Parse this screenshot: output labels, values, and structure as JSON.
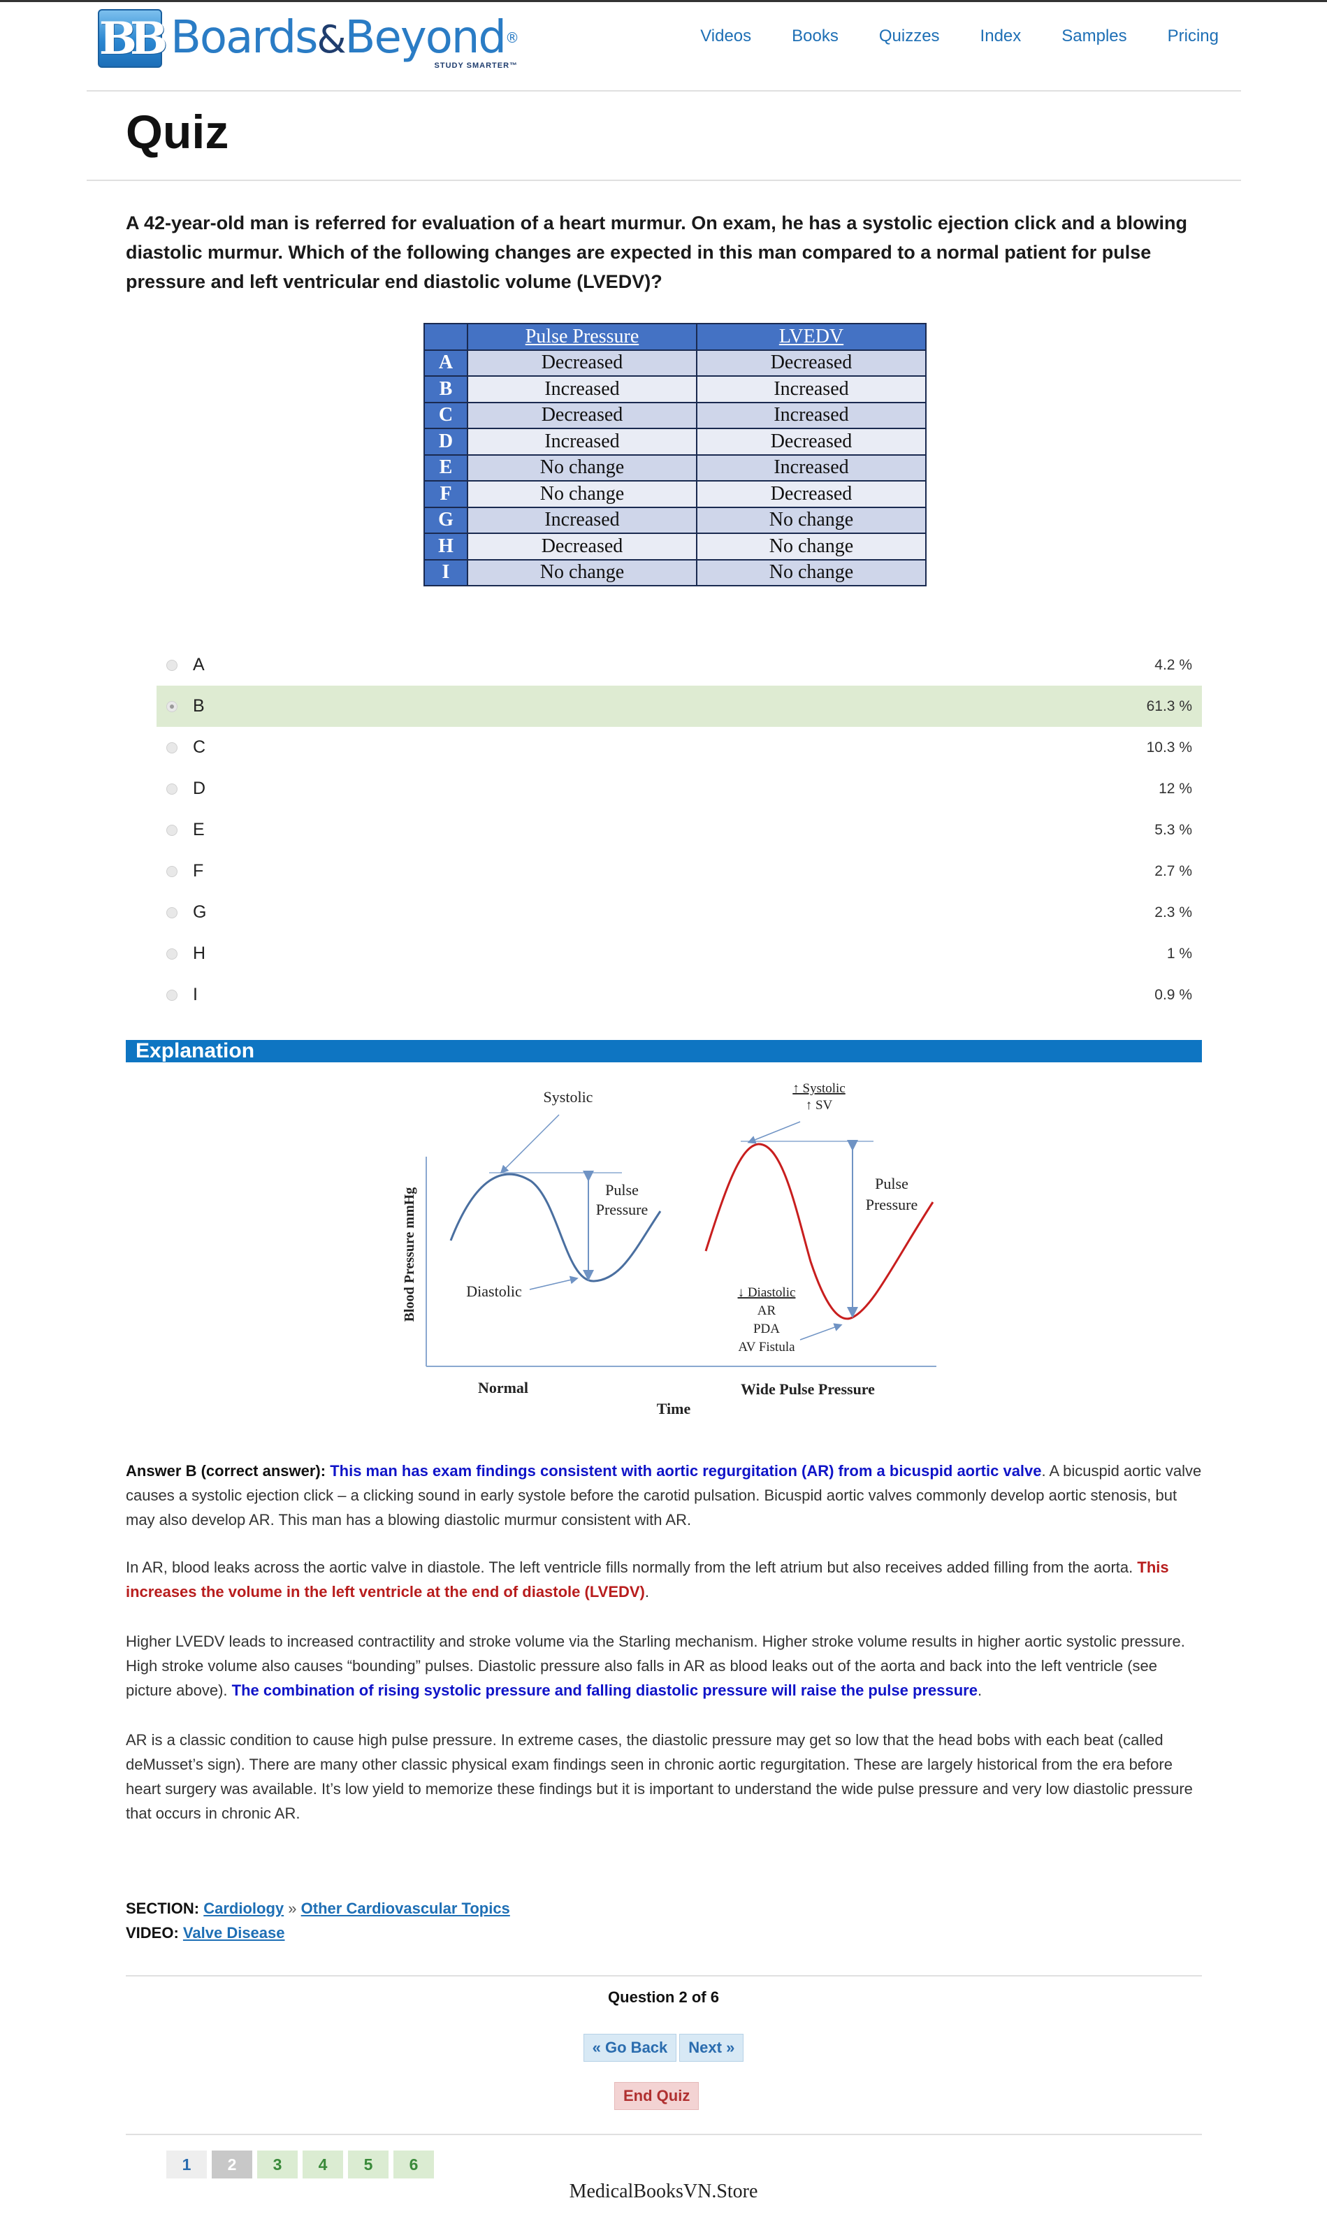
{
  "brand": {
    "mark": "BB",
    "name_part1": "Boards",
    "name_amp": "&",
    "name_part2": "Beyond",
    "registered": "®",
    "tagline": "STUDY SMARTER™"
  },
  "nav": {
    "items": [
      "Videos",
      "Books",
      "Quizzes",
      "Index",
      "Samples",
      "Pricing"
    ]
  },
  "page": {
    "title": "Quiz"
  },
  "question": {
    "text": "A 42-year-old man is referred for evaluation of a heart murmur. On exam, he has a systolic ejection click and a blowing diastolic murmur. Which of the following changes are expected in this man compared to a normal patient for pulse pressure and left ventricular end diastolic volume (LVEDV)?"
  },
  "answer_table": {
    "headers": [
      "Pulse Pressure",
      "LVEDV"
    ],
    "rows": [
      {
        "letter": "A",
        "pp": "Decreased",
        "lvedv": "Decreased"
      },
      {
        "letter": "B",
        "pp": "Increased",
        "lvedv": "Increased"
      },
      {
        "letter": "C",
        "pp": "Decreased",
        "lvedv": "Increased"
      },
      {
        "letter": "D",
        "pp": "Increased",
        "lvedv": "Decreased"
      },
      {
        "letter": "E",
        "pp": "No change",
        "lvedv": "Increased"
      },
      {
        "letter": "F",
        "pp": "No change",
        "lvedv": "Decreased"
      },
      {
        "letter": "G",
        "pp": "Increased",
        "lvedv": "No change"
      },
      {
        "letter": "H",
        "pp": "Decreased",
        "lvedv": "No change"
      },
      {
        "letter": "I",
        "pp": "No change",
        "lvedv": "No change"
      }
    ]
  },
  "options": [
    {
      "label": "A",
      "pct": "4.2 %",
      "selected": false
    },
    {
      "label": "B",
      "pct": "61.3 %",
      "selected": true
    },
    {
      "label": "C",
      "pct": "10.3 %",
      "selected": false
    },
    {
      "label": "D",
      "pct": "12 %",
      "selected": false
    },
    {
      "label": "E",
      "pct": "5.3 %",
      "selected": false
    },
    {
      "label": "F",
      "pct": "2.7 %",
      "selected": false
    },
    {
      "label": "G",
      "pct": "2.3 %",
      "selected": false
    },
    {
      "label": "H",
      "pct": "1 %",
      "selected": false
    },
    {
      "label": "I",
      "pct": "0.9 %",
      "selected": false
    }
  ],
  "explanation": {
    "heading": "Explanation",
    "figure": {
      "ylabel": "Blood Pressure mmHg",
      "xlabel": "Time",
      "left_title": "Normal",
      "right_title": "Wide  Pulse Pressure",
      "systolic": "Systolic",
      "diastolic": "Diastolic",
      "pulse_pressure_1": "Pulse",
      "pulse_pressure_2": "Pressure",
      "up_systolic": "↑ Systolic",
      "up_sv": "↑ SV",
      "down_diastolic": "↓ Diastolic",
      "ar": "AR",
      "pda": "PDA",
      "av_fistula": "AV Fistula"
    },
    "p1": {
      "lead": "Answer B (correct answer):",
      "highlight": "This man has exam findings consistent with aortic regurgitation (AR) from a bicuspid aortic valve",
      "rest": ". A bicuspid aortic valve causes a systolic ejection click – a clicking sound in early systole before the carotid pulsation. Bicuspid aortic valves commonly develop aortic stenosis, but may also develop AR. This man has a blowing diastolic murmur consistent with AR."
    },
    "p2": {
      "text": "In AR, blood leaks across the aortic valve in diastole. The left ventricle fills normally from the left atrium but also receives added filling from the aorta. ",
      "highlight": "This increases the volume in the left ventricle at the end of diastole (LVEDV)",
      "end": "."
    },
    "p3": {
      "text": "Higher LVEDV leads to increased contractility and stroke volume via the Starling mechanism. Higher stroke volume results in higher aortic systolic pressure. High stroke volume also causes “bounding” pulses. Diastolic pressure also falls in AR as blood leaks out of the aorta and back into the left ventricle (see picture above). ",
      "highlight": "The combination of rising systolic pressure and falling diastolic pressure will raise the pulse pressure",
      "end": "."
    },
    "p4": {
      "text": "AR is a classic condition to cause high pulse pressure. In extreme cases, the diastolic pressure may get so low that the head bobs with each beat (called deMusset’s sign). There are many other classic physical exam findings seen in chronic aortic regurgitation. These are largely historical from the era before heart surgery was available. It’s low yield to memorize these findings but it is important to understand the wide pulse pressure and very low diastolic pressure that occurs in chronic AR."
    }
  },
  "meta": {
    "section_label": "SECTION:",
    "section_link1": "Cardiology",
    "section_sep": "»",
    "section_link2": "Other Cardiovascular Topics",
    "video_label": "VIDEO:",
    "video_link": "Valve Disease"
  },
  "footer": {
    "question_count": "Question 2 of 6",
    "back_label": "« Go Back",
    "next_label": "Next »",
    "end_label": "End Quiz",
    "pages": [
      {
        "n": "1",
        "state": "plain"
      },
      {
        "n": "2",
        "state": "current"
      },
      {
        "n": "3",
        "state": "done"
      },
      {
        "n": "4",
        "state": "done"
      },
      {
        "n": "5",
        "state": "done"
      },
      {
        "n": "6",
        "state": "done"
      }
    ],
    "watermark": "MedicalBooksVN.Store"
  },
  "colors": {
    "accent": "#0e75c2",
    "link": "#1e6fb5",
    "selected_row": "#deebd2",
    "table_header": "#4472c4",
    "curve_normal": "#4a6fa0",
    "curve_wide": "#c81e1e"
  }
}
